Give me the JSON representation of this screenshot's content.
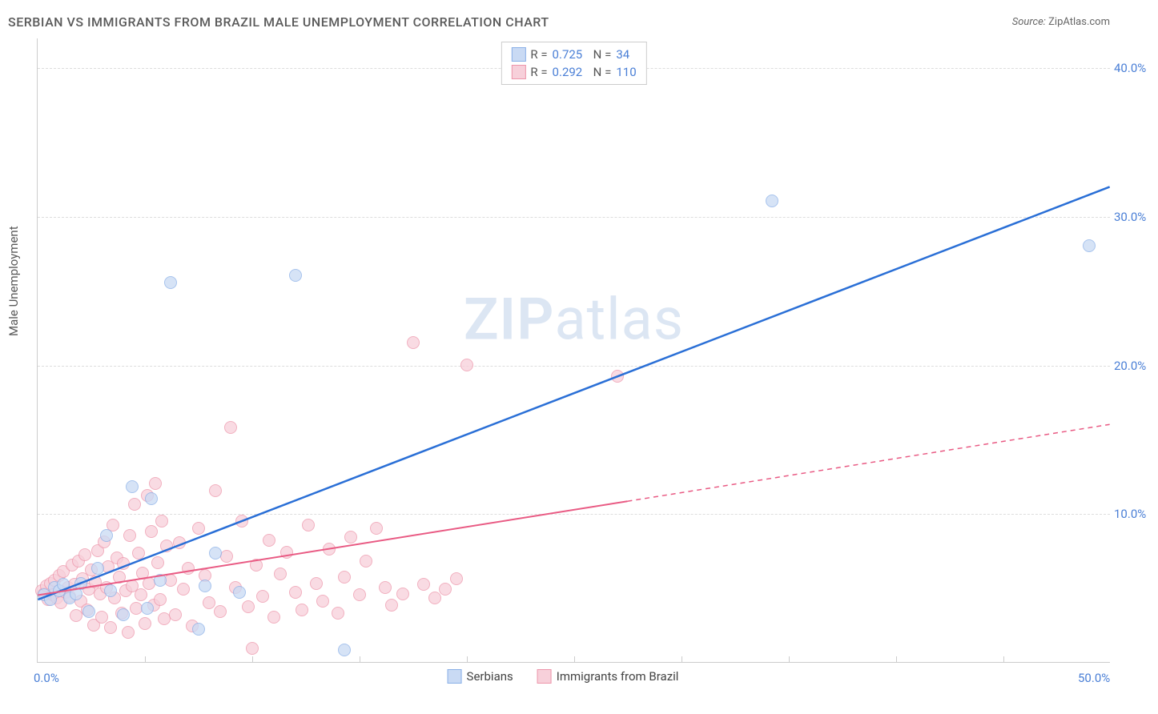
{
  "title": "SERBIAN VS IMMIGRANTS FROM BRAZIL MALE UNEMPLOYMENT CORRELATION CHART",
  "source": {
    "label": "Source:",
    "name": "ZipAtlas.com"
  },
  "y_axis_label": "Male Unemployment",
  "watermark": {
    "part1": "ZIP",
    "part2": "atlas"
  },
  "series_a": {
    "name": "Serbians",
    "color_fill": "#c9daf4",
    "color_stroke": "#8ab0e7",
    "line_color": "#2a6fd6",
    "r_value": "0.725",
    "n_value": "34"
  },
  "series_b": {
    "name": "Immigrants from Brazil",
    "color_fill": "#f7d0da",
    "color_stroke": "#ed96ab",
    "line_color": "#e95b84",
    "r_value": "0.292",
    "n_value": "110"
  },
  "axes": {
    "xlim": [
      0,
      50
    ],
    "ylim": [
      0,
      42
    ],
    "y_ticks": [
      10,
      20,
      30,
      40
    ],
    "y_tick_labels": [
      "10.0%",
      "20.0%",
      "30.0%",
      "40.0%"
    ],
    "x_origin_label": "0.0%",
    "x_end_label": "50.0%",
    "grid_color": "#dddddd",
    "minor_x_ticks": [
      5,
      10,
      15,
      20,
      25,
      30,
      35,
      40,
      45
    ]
  },
  "trend_lines": {
    "a": {
      "x1": 0,
      "y1": 4.2,
      "x2": 50,
      "y2": 32,
      "solid_to_x": 50
    },
    "b": {
      "x1": 0,
      "y1": 4.5,
      "x2": 50,
      "y2": 16,
      "solid_to_x": 27.5
    }
  },
  "point_radius": 8,
  "points_a": [
    [
      0.3,
      4.5
    ],
    [
      0.6,
      4.2
    ],
    [
      0.8,
      5.0
    ],
    [
      1.0,
      4.8
    ],
    [
      1.2,
      5.2
    ],
    [
      1.5,
      4.3
    ],
    [
      1.8,
      4.6
    ],
    [
      2.0,
      5.3
    ],
    [
      2.4,
      3.4
    ],
    [
      2.8,
      6.3
    ],
    [
      3.2,
      8.5
    ],
    [
      3.4,
      4.8
    ],
    [
      4.0,
      3.2
    ],
    [
      4.4,
      11.8
    ],
    [
      5.3,
      11.0
    ],
    [
      5.1,
      3.6
    ],
    [
      5.7,
      5.5
    ],
    [
      6.2,
      25.5
    ],
    [
      7.5,
      2.2
    ],
    [
      7.8,
      5.1
    ],
    [
      8.3,
      7.3
    ],
    [
      9.4,
      4.7
    ],
    [
      12.0,
      26.0
    ],
    [
      14.3,
      0.8
    ],
    [
      34.2,
      31.0
    ],
    [
      49.0,
      28.0
    ]
  ],
  "points_b": [
    [
      0.2,
      4.8
    ],
    [
      0.3,
      4.6
    ],
    [
      0.4,
      5.1
    ],
    [
      0.5,
      4.2
    ],
    [
      0.6,
      5.3
    ],
    [
      0.7,
      4.5
    ],
    [
      0.8,
      5.5
    ],
    [
      0.9,
      4.3
    ],
    [
      1.0,
      5.8
    ],
    [
      1.1,
      4.0
    ],
    [
      1.2,
      6.1
    ],
    [
      1.3,
      4.7
    ],
    [
      1.4,
      5.0
    ],
    [
      1.5,
      4.4
    ],
    [
      1.6,
      6.5
    ],
    [
      1.7,
      5.2
    ],
    [
      1.8,
      3.1
    ],
    [
      1.9,
      6.8
    ],
    [
      2.0,
      4.1
    ],
    [
      2.1,
      5.6
    ],
    [
      2.2,
      7.2
    ],
    [
      2.3,
      3.5
    ],
    [
      2.4,
      4.9
    ],
    [
      2.5,
      6.2
    ],
    [
      2.6,
      2.5
    ],
    [
      2.7,
      5.4
    ],
    [
      2.8,
      7.5
    ],
    [
      2.9,
      4.6
    ],
    [
      3.0,
      3.0
    ],
    [
      3.1,
      8.1
    ],
    [
      3.2,
      5.0
    ],
    [
      3.3,
      6.4
    ],
    [
      3.4,
      2.3
    ],
    [
      3.5,
      9.2
    ],
    [
      3.6,
      4.3
    ],
    [
      3.7,
      7.0
    ],
    [
      3.8,
      5.7
    ],
    [
      3.9,
      3.3
    ],
    [
      4.0,
      6.6
    ],
    [
      4.1,
      4.8
    ],
    [
      4.2,
      2.0
    ],
    [
      4.3,
      8.5
    ],
    [
      4.4,
      5.1
    ],
    [
      4.5,
      10.6
    ],
    [
      4.6,
      3.6
    ],
    [
      4.7,
      7.3
    ],
    [
      4.8,
      4.5
    ],
    [
      4.9,
      6.0
    ],
    [
      5.0,
      2.6
    ],
    [
      5.1,
      11.2
    ],
    [
      5.2,
      5.3
    ],
    [
      5.3,
      8.8
    ],
    [
      5.4,
      3.8
    ],
    [
      5.5,
      12.0
    ],
    [
      5.6,
      6.7
    ],
    [
      5.7,
      4.2
    ],
    [
      5.8,
      9.5
    ],
    [
      5.9,
      2.9
    ],
    [
      6.0,
      7.8
    ],
    [
      6.2,
      5.5
    ],
    [
      6.4,
      3.2
    ],
    [
      6.6,
      8.0
    ],
    [
      6.8,
      4.9
    ],
    [
      7.0,
      6.3
    ],
    [
      7.2,
      2.4
    ],
    [
      7.5,
      9.0
    ],
    [
      7.8,
      5.8
    ],
    [
      8.0,
      4.0
    ],
    [
      8.3,
      11.5
    ],
    [
      8.5,
      3.4
    ],
    [
      8.8,
      7.1
    ],
    [
      9.0,
      15.8
    ],
    [
      9.2,
      5.0
    ],
    [
      9.5,
      9.5
    ],
    [
      9.8,
      3.7
    ],
    [
      10.0,
      0.9
    ],
    [
      10.2,
      6.5
    ],
    [
      10.5,
      4.4
    ],
    [
      10.8,
      8.2
    ],
    [
      11.0,
      3.0
    ],
    [
      11.3,
      5.9
    ],
    [
      11.6,
      7.4
    ],
    [
      12.0,
      4.7
    ],
    [
      12.3,
      3.5
    ],
    [
      12.6,
      9.2
    ],
    [
      13.0,
      5.3
    ],
    [
      13.3,
      4.1
    ],
    [
      13.6,
      7.6
    ],
    [
      14.0,
      3.3
    ],
    [
      14.3,
      5.7
    ],
    [
      14.6,
      8.4
    ],
    [
      15.0,
      4.5
    ],
    [
      15.3,
      6.8
    ],
    [
      15.8,
      9.0
    ],
    [
      16.2,
      5.0
    ],
    [
      16.5,
      3.8
    ],
    [
      17.0,
      4.6
    ],
    [
      17.5,
      21.5
    ],
    [
      18.0,
      5.2
    ],
    [
      18.5,
      4.3
    ],
    [
      19.0,
      4.9
    ],
    [
      19.5,
      5.6
    ],
    [
      20.0,
      20.0
    ],
    [
      27.0,
      19.2
    ]
  ]
}
